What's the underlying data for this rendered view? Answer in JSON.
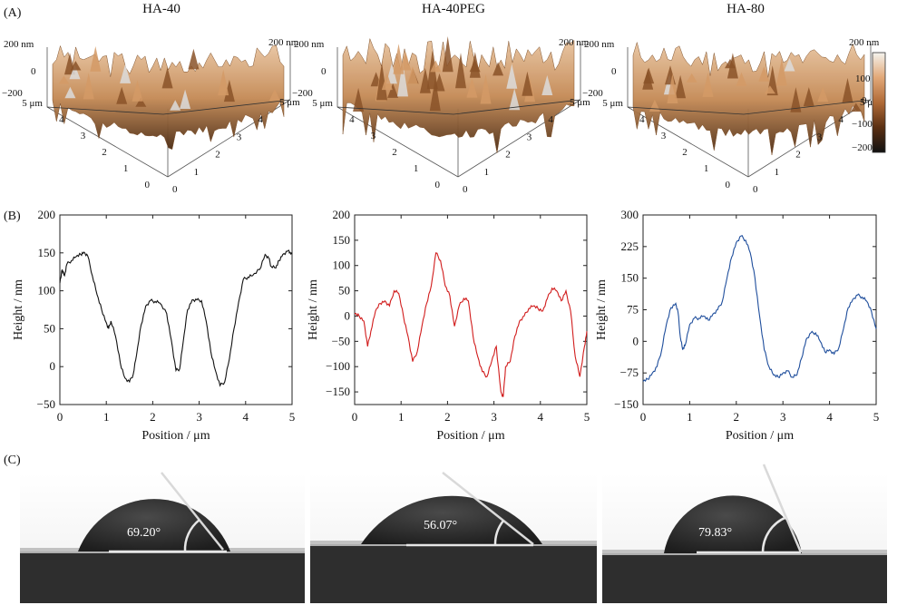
{
  "panel_labels": {
    "a": "(A)",
    "b": "(B)",
    "c": "(C)"
  },
  "surfaces": [
    {
      "title": "HA-40",
      "z_ticks": [
        "200 nm",
        "0",
        "−200"
      ],
      "x_ticks": [
        "0",
        "1",
        "2",
        "3",
        "4",
        "5 μm"
      ],
      "y_ticks": [
        "0",
        "1",
        "2",
        "3",
        "4",
        "5 μm"
      ]
    },
    {
      "title": "HA-40PEG",
      "z_ticks": [
        "200 nm",
        "0",
        "−200"
      ],
      "x_ticks": [
        "0",
        "1",
        "2",
        "3",
        "4",
        "5 μm"
      ],
      "y_ticks": [
        "0",
        "1",
        "2",
        "3",
        "4",
        "5 μm"
      ]
    },
    {
      "title": "HA-80",
      "z_ticks": [
        "200 nm",
        "0",
        "−200"
      ],
      "x_ticks": [
        "0",
        "1",
        "2",
        "3",
        "4",
        "5 μm"
      ],
      "y_ticks": [
        "0",
        "1",
        "2",
        "3",
        "4",
        "5 μm"
      ]
    }
  ],
  "colorbar": {
    "ticks": [
      "100",
      "0",
      "−100",
      "−200"
    ],
    "colors": [
      "#f4f3ee",
      "#e2a878",
      "#b06a37",
      "#5a2f12",
      "#111111"
    ]
  },
  "chart_data": [
    {
      "type": "line",
      "series_label": "HA-40",
      "color": "#111111",
      "xlabel": "Position / μm",
      "ylabel": "Height / nm",
      "xlim": [
        0,
        5
      ],
      "ylim": [
        -50,
        200
      ],
      "xticks": [
        0,
        1,
        2,
        3,
        4,
        5
      ],
      "yticks": [
        -50,
        0,
        50,
        100,
        150,
        200
      ],
      "xtick_labels": [
        "0",
        "1",
        "2",
        "3",
        "4",
        "5"
      ],
      "ytick_labels": [
        "−50",
        "0",
        "50",
        "100",
        "150",
        "200"
      ],
      "x": [
        0,
        0.05,
        0.1,
        0.15,
        0.25,
        0.35,
        0.45,
        0.52,
        0.6,
        0.7,
        0.8,
        0.9,
        1.0,
        1.05,
        1.1,
        1.2,
        1.3,
        1.4,
        1.5,
        1.58,
        1.65,
        1.75,
        1.85,
        1.95,
        2.05,
        2.15,
        2.3,
        2.4,
        2.5,
        2.58,
        2.65,
        2.75,
        2.85,
        2.95,
        3.05,
        3.15,
        3.25,
        3.35,
        3.45,
        3.55,
        3.65,
        3.75,
        3.85,
        3.95,
        4.05,
        4.15,
        4.3,
        4.42,
        4.5,
        4.55,
        4.65,
        4.72,
        4.8,
        4.9,
        5.0
      ],
      "y": [
        110,
        128,
        120,
        135,
        140,
        145,
        148,
        151,
        146,
        120,
        95,
        75,
        58,
        50,
        60,
        40,
        5,
        -15,
        -20,
        -10,
        15,
        55,
        80,
        87,
        86,
        84,
        70,
        35,
        -5,
        -3,
        30,
        75,
        88,
        88,
        87,
        60,
        20,
        -5,
        -25,
        -20,
        10,
        50,
        85,
        115,
        118,
        120,
        128,
        148,
        143,
        132,
        130,
        140,
        148,
        152,
        150
      ]
    },
    {
      "type": "line",
      "series_label": "HA-40PEG",
      "color": "#d11c1c",
      "xlabel": "Position / μm",
      "ylabel": "Height / nm",
      "xlim": [
        0,
        5
      ],
      "ylim": [
        -175,
        200
      ],
      "xticks": [
        0,
        1,
        2,
        3,
        4,
        5
      ],
      "yticks": [
        -150,
        -100,
        -50,
        0,
        50,
        100,
        150,
        200
      ],
      "xtick_labels": [
        "0",
        "1",
        "2",
        "3",
        "4",
        "5"
      ],
      "ytick_labels": [
        "−150",
        "−100",
        "−50",
        "0",
        "50",
        "100",
        "150",
        "200"
      ],
      "x": [
        0,
        0.1,
        0.2,
        0.28,
        0.35,
        0.45,
        0.55,
        0.65,
        0.75,
        0.85,
        0.95,
        1.05,
        1.15,
        1.25,
        1.35,
        1.45,
        1.55,
        1.65,
        1.75,
        1.85,
        1.95,
        2.05,
        2.15,
        2.25,
        2.35,
        2.45,
        2.55,
        2.65,
        2.75,
        2.85,
        2.95,
        3.05,
        3.15,
        3.2,
        3.25,
        3.35,
        3.45,
        3.55,
        3.65,
        3.75,
        3.85,
        3.95,
        4.05,
        4.15,
        4.25,
        4.35,
        4.45,
        4.55,
        4.65,
        4.75,
        4.85,
        4.95,
        5.0
      ],
      "y": [
        5,
        0,
        -10,
        -60,
        -30,
        10,
        25,
        30,
        20,
        50,
        45,
        0,
        -40,
        -90,
        -70,
        -20,
        25,
        60,
        125,
        110,
        60,
        40,
        -20,
        20,
        35,
        30,
        -40,
        -80,
        -110,
        -120,
        -90,
        -60,
        -150,
        -160,
        -100,
        -90,
        -40,
        -10,
        0,
        15,
        20,
        15,
        10,
        35,
        55,
        50,
        30,
        50,
        10,
        -80,
        -120,
        -60,
        -30
      ]
    },
    {
      "type": "line",
      "series_label": "HA-80",
      "color": "#1f4e9c",
      "xlabel": "Position / μm",
      "ylabel": "Height / nm",
      "xlim": [
        0,
        5
      ],
      "ylim": [
        -150,
        300
      ],
      "xticks": [
        0,
        1,
        2,
        3,
        4,
        5
      ],
      "yticks": [
        -150,
        -75,
        0,
        75,
        150,
        225,
        300
      ],
      "xtick_labels": [
        "0",
        "1",
        "2",
        "3",
        "4",
        "5"
      ],
      "ytick_labels": [
        "−150",
        "−75",
        "0",
        "75",
        "150",
        "225",
        "300"
      ],
      "x": [
        0,
        0.1,
        0.2,
        0.3,
        0.4,
        0.5,
        0.6,
        0.7,
        0.75,
        0.8,
        0.85,
        0.9,
        1.0,
        1.1,
        1.2,
        1.3,
        1.4,
        1.5,
        1.6,
        1.7,
        1.8,
        1.9,
        2.0,
        2.1,
        2.2,
        2.3,
        2.4,
        2.5,
        2.6,
        2.7,
        2.8,
        2.9,
        3.0,
        3.1,
        3.2,
        3.3,
        3.4,
        3.5,
        3.6,
        3.7,
        3.8,
        3.9,
        4.0,
        4.1,
        4.2,
        4.3,
        4.4,
        4.5,
        4.6,
        4.7,
        4.8,
        4.9,
        5.0
      ],
      "y": [
        -95,
        -90,
        -75,
        -60,
        -20,
        40,
        80,
        90,
        70,
        10,
        -20,
        -10,
        40,
        55,
        55,
        60,
        50,
        65,
        75,
        95,
        150,
        200,
        235,
        250,
        240,
        210,
        150,
        60,
        -20,
        -60,
        -80,
        -85,
        -75,
        -70,
        -85,
        -80,
        -40,
        5,
        20,
        20,
        0,
        -25,
        -20,
        -30,
        -15,
        30,
        80,
        100,
        110,
        105,
        95,
        70,
        30
      ]
    }
  ],
  "contact_angles": [
    {
      "sample": "HA-40",
      "label": "69.20°",
      "angle_deg": 69.2
    },
    {
      "sample": "HA-40PEG",
      "label": "56.07°",
      "angle_deg": 56.07
    },
    {
      "sample": "HA-80",
      "label": "79.83°",
      "angle_deg": 79.83
    }
  ]
}
